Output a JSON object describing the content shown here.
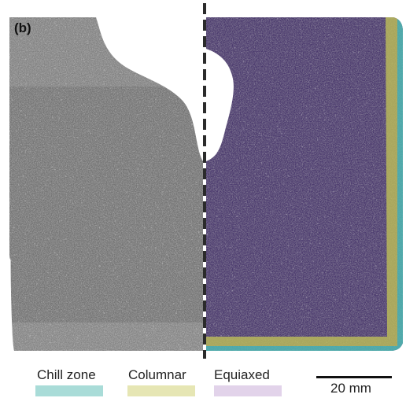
{
  "panel_label": "(b)",
  "legend": [
    {
      "label": "Chill zone",
      "color": "#a9dcd8"
    },
    {
      "label": "Columnar",
      "color": "#e6e6b4"
    },
    {
      "label": "Equiaxed",
      "color": "#e2d3ea"
    }
  ],
  "scale_bar": {
    "label": "20 mm"
  },
  "colors": {
    "dashed_line": "#2b2b2b",
    "equiaxed_overlay": "#5b3d87",
    "columnar_overlay": "#c2c25a",
    "chill_overlay": "#55bdb8",
    "micrograph_gray": "#7a7a7a"
  },
  "icons": {
    "dashed_divider": "vertical-dashed-line"
  }
}
